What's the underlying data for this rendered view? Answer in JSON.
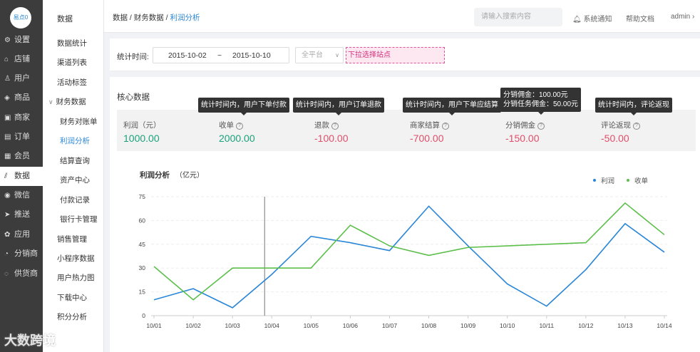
{
  "app": {
    "logo_text": "易点0"
  },
  "nav1": {
    "items": [
      {
        "label": "设置",
        "icon": "gear-icon",
        "glyph": "⚙"
      },
      {
        "label": "店铺",
        "icon": "store-icon",
        "glyph": "⌂"
      },
      {
        "label": "用户",
        "icon": "user-icon",
        "glyph": "♙"
      },
      {
        "label": "商品",
        "icon": "goods-icon",
        "glyph": "◈"
      },
      {
        "label": "商家",
        "icon": "merchant-icon",
        "glyph": "▣"
      },
      {
        "label": "订单",
        "icon": "order-icon",
        "glyph": "▤"
      },
      {
        "label": "会员",
        "icon": "member-icon",
        "glyph": "▦"
      },
      {
        "label": "数据",
        "icon": "data-icon",
        "glyph": "⫽"
      },
      {
        "label": "微信",
        "icon": "wechat-icon",
        "glyph": "◉"
      },
      {
        "label": "推送",
        "icon": "push-icon",
        "glyph": "➤"
      },
      {
        "label": "应用",
        "icon": "apps-icon",
        "glyph": "✿"
      },
      {
        "label": "分销商",
        "icon": "distributor-icon",
        "glyph": "◔"
      },
      {
        "label": "供货商",
        "icon": "supplier-icon",
        "glyph": "◌"
      }
    ],
    "active_index": 7
  },
  "nav2": {
    "title": "数据",
    "items": [
      {
        "label": "数据统计",
        "kind": "item"
      },
      {
        "label": "渠道列表",
        "kind": "item"
      },
      {
        "label": "活动标签",
        "kind": "item"
      },
      {
        "label": "财务数据",
        "kind": "group",
        "expander": "∨"
      },
      {
        "label": "财务对账单",
        "kind": "sub"
      },
      {
        "label": "利润分析",
        "kind": "sub",
        "active": true
      },
      {
        "label": "结算查询",
        "kind": "sub"
      },
      {
        "label": "资产中心",
        "kind": "sub"
      },
      {
        "label": "付款记录",
        "kind": "sub"
      },
      {
        "label": "银行卡管理",
        "kind": "sub"
      },
      {
        "label": "销售管理",
        "kind": "item"
      },
      {
        "label": "小程序数据",
        "kind": "item"
      },
      {
        "label": "用户热力图",
        "kind": "item"
      },
      {
        "label": "下载中心",
        "kind": "item"
      },
      {
        "label": "积分分析",
        "kind": "item"
      }
    ]
  },
  "header": {
    "breadcrumb_1": "数据",
    "breadcrumb_sep": " / ",
    "breadcrumb_2": "财务数据",
    "breadcrumb_3": "利润分析",
    "search_placeholder": "请输入搜索内容",
    "notify_label": "系统通知",
    "help_label": "帮助文档",
    "user_label": "admin",
    "user_chevron": "›"
  },
  "filter": {
    "label": "统计时间:",
    "date_start": "2015-10-02",
    "date_sep": "~",
    "date_end": "2015-10-10",
    "platform_value": "全平台",
    "platform_chevron": "∨",
    "site_hint": "下拉选择站点"
  },
  "core": {
    "title": "核心数据",
    "stats": [
      {
        "label": "利润（元）",
        "value": "1000.00",
        "color": "#1aa37a",
        "has_help": false
      },
      {
        "label": "收单",
        "value": "2000.00",
        "color": "#1aa37a",
        "has_help": true,
        "tip": [
          "统计时间内，用户下单付款"
        ]
      },
      {
        "label": "退款",
        "value": "-100.00",
        "color": "#e04f6a",
        "has_help": true,
        "tip": [
          "统计时间内，用户订单退款"
        ]
      },
      {
        "label": "商家结算",
        "value": "-700.00",
        "color": "#e04f6a",
        "has_help": true,
        "tip": [
          "统计时间内，用户下单应结算"
        ]
      },
      {
        "label": "分销佣金",
        "value": "-150.00",
        "color": "#e04f6a",
        "has_help": true,
        "tip": [
          "分销佣金：100.00元",
          "分销任务佣金：50.00元"
        ]
      },
      {
        "label": "评论返现",
        "value": "-50.00",
        "color": "#e04f6a",
        "has_help": true,
        "tip": [
          "统计时间内，评论返现"
        ]
      }
    ]
  },
  "chart_data": {
    "type": "line",
    "title": "利润分析",
    "unit": "（亿元）",
    "categories": [
      "10/01",
      "10/02",
      "10/03",
      "10/04",
      "10/05",
      "10/06",
      "10/07",
      "10/08",
      "10/09",
      "10/10",
      "10/11",
      "10/12",
      "10/13",
      "10/14"
    ],
    "yticks": [
      0,
      15,
      30,
      45,
      60,
      75
    ],
    "ylim": [
      0,
      75
    ],
    "series": [
      {
        "name": "利润",
        "color": "#2a86d6",
        "values": [
          10,
          17,
          5,
          26,
          50,
          46,
          41,
          69,
          44,
          20,
          6,
          29,
          58,
          40
        ]
      },
      {
        "name": "收单",
        "color": "#5cbf4a",
        "values": [
          31,
          10,
          30,
          30,
          30,
          57,
          44,
          38,
          43,
          44,
          45,
          46,
          71,
          51
        ]
      }
    ],
    "cursor_category": "10/04",
    "legend_position": "top-right",
    "gridlines": true
  },
  "watermark": "大数跨境"
}
